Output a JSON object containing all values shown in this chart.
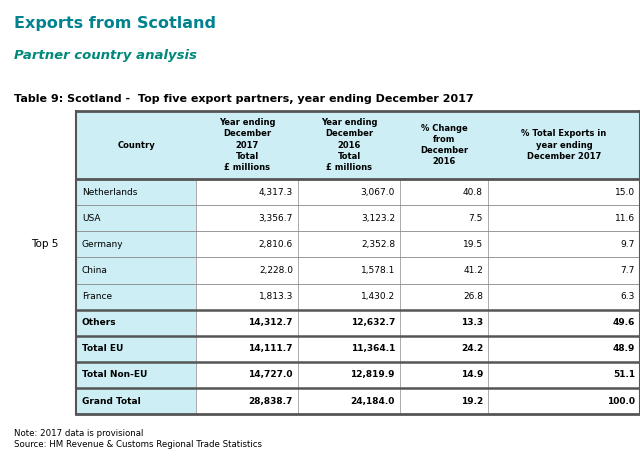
{
  "title": "Exports from Scotland",
  "subtitle": "Partner country analysis",
  "table_title": "Table 9: Scotland -  Top five export partners, year ending December 2017",
  "col_headers": [
    "Country",
    "Year ending\nDecember\n2017\nTotal\n£ millions",
    "Year ending\nDecember\n2016\nTotal\n£ millions",
    "% Change\nfrom\nDecember\n2016",
    "% Total Exports in\nyear ending\nDecember 2017"
  ],
  "row_label": "Top 5",
  "rows": [
    [
      "Netherlands",
      "4,317.3",
      "3,067.0",
      "40.8",
      "15.0"
    ],
    [
      "USA",
      "3,356.7",
      "3,123.2",
      "7.5",
      "11.6"
    ],
    [
      "Germany",
      "2,810.6",
      "2,352.8",
      "19.5",
      "9.7"
    ],
    [
      "China",
      "2,228.0",
      "1,578.1",
      "41.2",
      "7.7"
    ],
    [
      "France",
      "1,813.3",
      "1,430.2",
      "26.8",
      "6.3"
    ],
    [
      "Others",
      "14,312.7",
      "12,632.7",
      "13.3",
      "49.6"
    ],
    [
      "Total EU",
      "14,111.7",
      "11,364.1",
      "24.2",
      "48.9"
    ],
    [
      "Total Non-EU",
      "14,727.0",
      "12,819.9",
      "14.9",
      "51.1"
    ],
    [
      "Grand Total",
      "28,838.7",
      "24,184.0",
      "19.2",
      "100.0"
    ]
  ],
  "bold_rows": [
    5,
    6,
    7,
    8
  ],
  "note": "Note: 2017 data is provisional\nSource: HM Revenue & Customs Regional Trade Statistics",
  "header_bg": "#cceef4",
  "country_col_bg": "#cceef4",
  "data_col_bg": "#ffffff",
  "title_color": "#00838f",
  "subtitle_color": "#00897b",
  "border_color": "#555555",
  "thin_line_color": "#888888"
}
